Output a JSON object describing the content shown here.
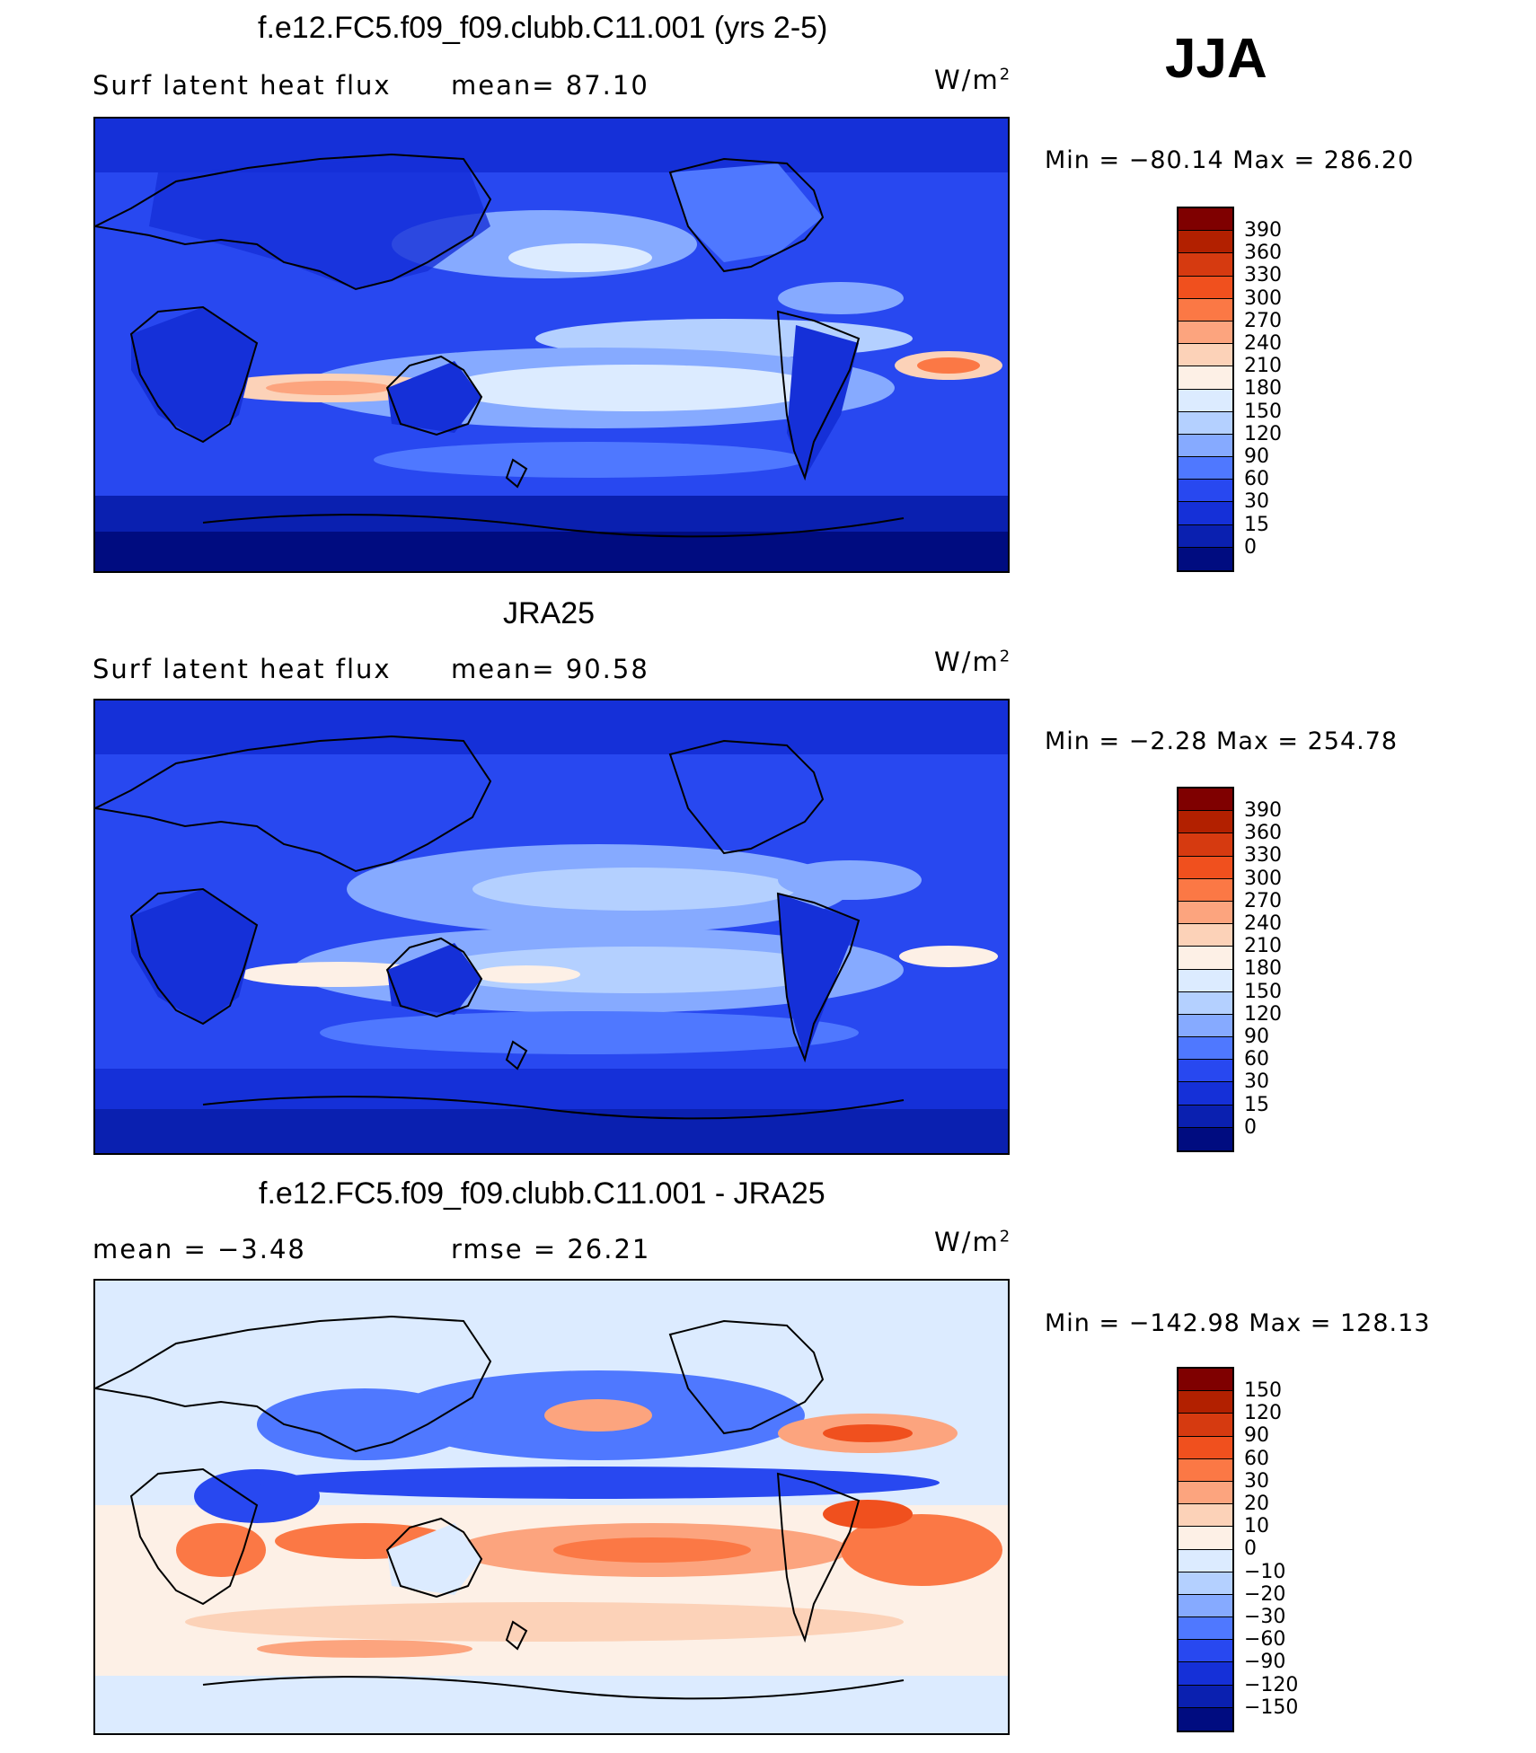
{
  "season": "JJA",
  "panels": [
    {
      "title": "f.e12.FC5.f09_f09.clubb.C11.001 (yrs 2-5)",
      "left_label": "Surf  latent  heat  flux",
      "middle_label": "mean=   87.10",
      "unit_base": "W/m",
      "unit_exp": "2",
      "stats": "Min  =  −80.14  Max  =  286.20",
      "colorbar": {
        "levels": [
          "390",
          "360",
          "330",
          "300",
          "270",
          "240",
          "210",
          "180",
          "150",
          "120",
          "90",
          "60",
          "30",
          "15",
          "0"
        ],
        "colors": [
          "#7f0000",
          "#b22000",
          "#d63a10",
          "#f0501e",
          "#fb7845",
          "#fca47e",
          "#fcd2b8",
          "#fdf0e6",
          "#dcebff",
          "#b4d0ff",
          "#86aaff",
          "#4f78ff",
          "#2848f0",
          "#1530d8",
          "#0a20b0",
          "#000c80"
        ]
      }
    },
    {
      "title": "JRA25",
      "left_label": "Surf  latent  heat  flux",
      "middle_label": "mean=   90.58",
      "unit_base": "W/m",
      "unit_exp": "2",
      "stats": "Min  =    −2.28  Max  =  254.78",
      "colorbar": {
        "levels": [
          "390",
          "360",
          "330",
          "300",
          "270",
          "240",
          "210",
          "180",
          "150",
          "120",
          "90",
          "60",
          "30",
          "15",
          "0"
        ],
        "colors": [
          "#7f0000",
          "#b22000",
          "#d63a10",
          "#f0501e",
          "#fb7845",
          "#fca47e",
          "#fcd2b8",
          "#fdf0e6",
          "#dcebff",
          "#b4d0ff",
          "#86aaff",
          "#4f78ff",
          "#2848f0",
          "#1530d8",
          "#0a20b0",
          "#000c80"
        ]
      }
    },
    {
      "title": "f.e12.FC5.f09_f09.clubb.C11.001 - JRA25",
      "left_label": "mean  =    −3.48",
      "middle_label": "rmse  =    26.21",
      "unit_base": "W/m",
      "unit_exp": "2",
      "stats": "Min  =  −142.98  Max  =  128.13",
      "colorbar": {
        "levels": [
          "150",
          "120",
          "90",
          "60",
          "30",
          "20",
          "10",
          "0",
          "−10",
          "−20",
          "−30",
          "−60",
          "−90",
          "−120",
          "−150"
        ],
        "colors": [
          "#7f0000",
          "#b22000",
          "#d63a10",
          "#f0501e",
          "#fb7845",
          "#fca47e",
          "#fcd2b8",
          "#fdf0e6",
          "#dcebff",
          "#b4d0ff",
          "#86aaff",
          "#4f78ff",
          "#2848f0",
          "#1530d8",
          "#0a20b0",
          "#000c80"
        ]
      }
    }
  ],
  "map_colors": {
    "panel1": {
      "base": "#2848f0",
      "ocean_high": "#b4d0ff",
      "ocean_peak": "#fcd2b8",
      "land": "#1530d8",
      "polar": "#000c80",
      "mid": "#4f78ff"
    },
    "panel2": {
      "base": "#2848f0",
      "ocean_high": "#b4d0ff",
      "ocean_peak": "#fdf0e6",
      "land": "#1530d8",
      "polar": "#0a20b0",
      "mid": "#86aaff"
    },
    "panel3": {
      "base": "#dcebff",
      "pos": "#fca47e",
      "pos_strong": "#f0501e",
      "neg": "#4f78ff",
      "neg_strong": "#1530d8",
      "polar": "#dcebff"
    }
  }
}
